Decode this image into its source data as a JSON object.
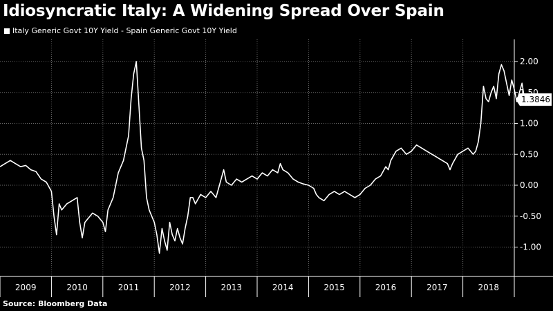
{
  "title": "Idiosyncratic Italy: A Widening Spread Over Spain",
  "source": "Source: Bloomberg Data",
  "colors": {
    "background": "#000000",
    "line": "#ffffff",
    "grid": "#6e6e6e"
  },
  "chart_data": {
    "type": "line",
    "title": "Idiosyncratic Italy: A Widening Spread Over Spain",
    "legend_position": "top-left",
    "grid": true,
    "x_tick_labels": [
      "2009",
      "2010",
      "2011",
      "2012",
      "2013",
      "2014",
      "2015",
      "2016",
      "2017",
      "2018"
    ],
    "y_tick_labels": [
      "2.00",
      "1.50",
      "1.00",
      "0.50",
      "0.00",
      "-0.50",
      "-1.00"
    ],
    "xlim": [
      2009.0,
      2019.0
    ],
    "ylim": [
      -1.4,
      2.3
    ],
    "last_value_label": "1.3846",
    "series": [
      {
        "name": "Italy Generic Govt 10Y Yield - Spain Generic Govt 10Y Yield",
        "points": [
          [
            2009.0,
            0.3
          ],
          [
            2009.1,
            0.35
          ],
          [
            2009.2,
            0.4
          ],
          [
            2009.3,
            0.35
          ],
          [
            2009.4,
            0.3
          ],
          [
            2009.5,
            0.32
          ],
          [
            2009.6,
            0.25
          ],
          [
            2009.7,
            0.22
          ],
          [
            2009.8,
            0.1
          ],
          [
            2009.9,
            0.05
          ],
          [
            2010.0,
            -0.1
          ],
          [
            2010.05,
            -0.5
          ],
          [
            2010.1,
            -0.8
          ],
          [
            2010.15,
            -0.3
          ],
          [
            2010.2,
            -0.4
          ],
          [
            2010.3,
            -0.3
          ],
          [
            2010.4,
            -0.25
          ],
          [
            2010.5,
            -0.2
          ],
          [
            2010.55,
            -0.6
          ],
          [
            2010.6,
            -0.85
          ],
          [
            2010.65,
            -0.6
          ],
          [
            2010.7,
            -0.55
          ],
          [
            2010.8,
            -0.45
          ],
          [
            2010.9,
            -0.5
          ],
          [
            2011.0,
            -0.6
          ],
          [
            2011.05,
            -0.75
          ],
          [
            2011.1,
            -0.4
          ],
          [
            2011.2,
            -0.2
          ],
          [
            2011.3,
            0.2
          ],
          [
            2011.4,
            0.4
          ],
          [
            2011.45,
            0.6
          ],
          [
            2011.5,
            0.8
          ],
          [
            2011.55,
            1.4
          ],
          [
            2011.6,
            1.8
          ],
          [
            2011.65,
            2.0
          ],
          [
            2011.7,
            1.3
          ],
          [
            2011.75,
            0.6
          ],
          [
            2011.8,
            0.4
          ],
          [
            2011.85,
            -0.2
          ],
          [
            2011.9,
            -0.4
          ],
          [
            2012.0,
            -0.6
          ],
          [
            2012.05,
            -0.8
          ],
          [
            2012.1,
            -1.1
          ],
          [
            2012.15,
            -0.7
          ],
          [
            2012.2,
            -0.9
          ],
          [
            2012.25,
            -1.05
          ],
          [
            2012.3,
            -0.6
          ],
          [
            2012.35,
            -0.8
          ],
          [
            2012.4,
            -0.9
          ],
          [
            2012.45,
            -0.7
          ],
          [
            2012.5,
            -0.85
          ],
          [
            2012.55,
            -0.95
          ],
          [
            2012.6,
            -0.7
          ],
          [
            2012.65,
            -0.5
          ],
          [
            2012.7,
            -0.2
          ],
          [
            2012.75,
            -0.2
          ],
          [
            2012.8,
            -0.3
          ],
          [
            2012.9,
            -0.15
          ],
          [
            2013.0,
            -0.2
          ],
          [
            2013.1,
            -0.1
          ],
          [
            2013.2,
            -0.2
          ],
          [
            2013.3,
            0.1
          ],
          [
            2013.35,
            0.25
          ],
          [
            2013.4,
            0.05
          ],
          [
            2013.5,
            0.0
          ],
          [
            2013.6,
            0.1
          ],
          [
            2013.7,
            0.05
          ],
          [
            2013.8,
            0.1
          ],
          [
            2013.9,
            0.15
          ],
          [
            2014.0,
            0.1
          ],
          [
            2014.1,
            0.2
          ],
          [
            2014.2,
            0.15
          ],
          [
            2014.3,
            0.25
          ],
          [
            2014.4,
            0.2
          ],
          [
            2014.45,
            0.35
          ],
          [
            2014.5,
            0.25
          ],
          [
            2014.6,
            0.2
          ],
          [
            2014.7,
            0.1
          ],
          [
            2014.8,
            0.05
          ],
          [
            2014.9,
            0.02
          ],
          [
            2015.0,
            0.0
          ],
          [
            2015.1,
            -0.05
          ],
          [
            2015.15,
            -0.15
          ],
          [
            2015.2,
            -0.2
          ],
          [
            2015.3,
            -0.25
          ],
          [
            2015.4,
            -0.15
          ],
          [
            2015.5,
            -0.1
          ],
          [
            2015.6,
            -0.15
          ],
          [
            2015.7,
            -0.1
          ],
          [
            2015.8,
            -0.15
          ],
          [
            2015.9,
            -0.2
          ],
          [
            2016.0,
            -0.15
          ],
          [
            2016.1,
            -0.05
          ],
          [
            2016.2,
            0.0
          ],
          [
            2016.3,
            0.1
          ],
          [
            2016.4,
            0.15
          ],
          [
            2016.5,
            0.3
          ],
          [
            2016.55,
            0.25
          ],
          [
            2016.6,
            0.4
          ],
          [
            2016.7,
            0.55
          ],
          [
            2016.8,
            0.6
          ],
          [
            2016.9,
            0.5
          ],
          [
            2017.0,
            0.55
          ],
          [
            2017.1,
            0.65
          ],
          [
            2017.2,
            0.6
          ],
          [
            2017.3,
            0.55
          ],
          [
            2017.4,
            0.5
          ],
          [
            2017.5,
            0.45
          ],
          [
            2017.6,
            0.4
          ],
          [
            2017.7,
            0.35
          ],
          [
            2017.75,
            0.25
          ],
          [
            2017.8,
            0.35
          ],
          [
            2017.9,
            0.5
          ],
          [
            2018.0,
            0.55
          ],
          [
            2018.1,
            0.6
          ],
          [
            2018.2,
            0.5
          ],
          [
            2018.25,
            0.55
          ],
          [
            2018.3,
            0.7
          ],
          [
            2018.35,
            1.0
          ],
          [
            2018.4,
            1.6
          ],
          [
            2018.45,
            1.4
          ],
          [
            2018.5,
            1.35
          ],
          [
            2018.55,
            1.5
          ],
          [
            2018.6,
            1.6
          ],
          [
            2018.65,
            1.4
          ],
          [
            2018.7,
            1.8
          ],
          [
            2018.75,
            1.95
          ],
          [
            2018.8,
            1.85
          ],
          [
            2018.85,
            1.65
          ],
          [
            2018.9,
            1.45
          ],
          [
            2018.95,
            1.7
          ],
          [
            2019.0,
            1.55
          ],
          [
            2019.05,
            1.35
          ],
          [
            2019.1,
            1.5
          ],
          [
            2019.15,
            1.65
          ],
          [
            2019.2,
            1.3846
          ]
        ]
      }
    ]
  }
}
